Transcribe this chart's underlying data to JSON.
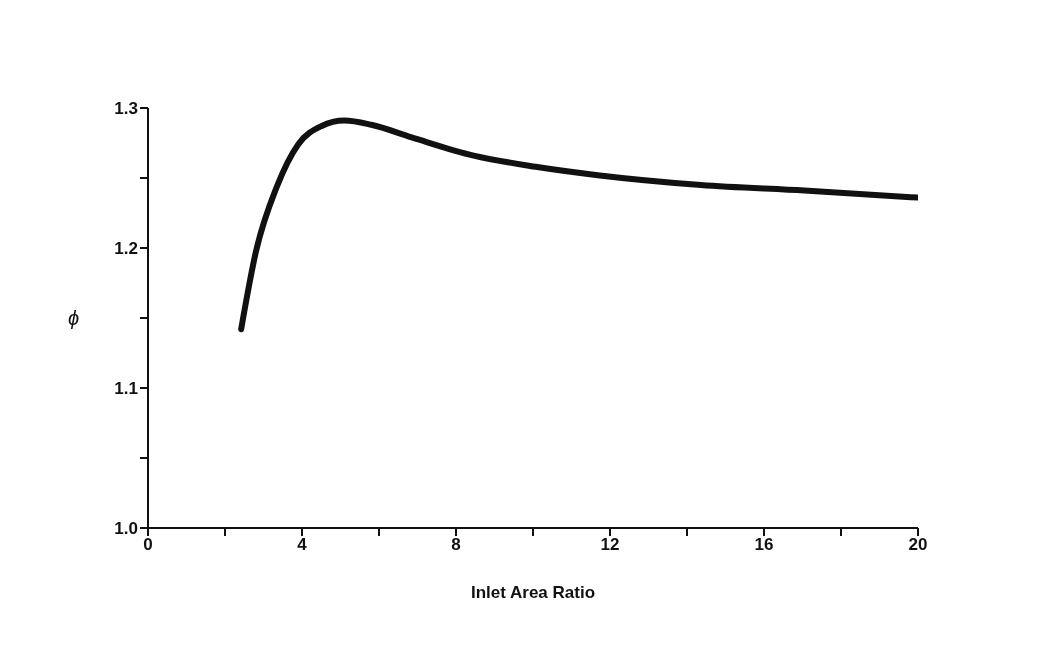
{
  "chart_data": {
    "type": "line",
    "xlabel": "Inlet Area Ratio",
    "ylabel": "ϕ",
    "xlim": [
      0,
      20
    ],
    "xticks": [
      0,
      {
        "value": 2,
        "label": null
      },
      4,
      {
        "value": 6,
        "label": null
      },
      8,
      {
        "value": 10,
        "label": null
      },
      12,
      {
        "value": 14,
        "label": null
      },
      16,
      {
        "value": 18,
        "label": null
      },
      20
    ],
    "ylim": [
      1.0,
      1.3
    ],
    "yticks": [
      {
        "value": 1.0,
        "label": "1.0"
      },
      {
        "value": 1.05,
        "label": null
      },
      1.1,
      {
        "value": 1.15,
        "label": null
      },
      1.2,
      {
        "value": 1.25,
        "label": null
      },
      1.3
    ],
    "grid": false,
    "legend": false,
    "marker": "none",
    "line_style": "solid",
    "series": [
      {
        "color": "#111111",
        "x": [
          2.42,
          2.8,
          3.35,
          3.9,
          4.5,
          5.1,
          5.8,
          6.85,
          8.46,
          10.07,
          11.68,
          14.36,
          17.05,
          20
        ],
        "values": [
          1.142,
          1.197,
          1.244,
          1.274,
          1.287,
          1.291,
          1.288,
          1.279,
          1.266,
          1.258,
          1.252,
          1.245,
          1.241,
          1.236
        ]
      }
    ]
  }
}
